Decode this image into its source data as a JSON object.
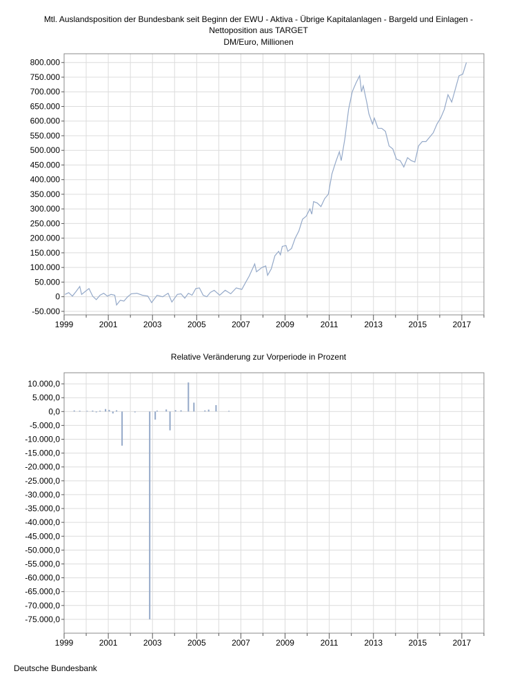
{
  "chart_data": [
    {
      "type": "line",
      "title": "Mtl. Auslandsposition der Bundesbank seit Beginn der EWU - Aktiva - Übrige Kapitalanlagen - Bargeld und Einlagen -",
      "title_line2": "Nettoposition aus TARGET",
      "subtitle": "DM/Euro, Millionen",
      "x_range": [
        "1999-01",
        "2017-12"
      ],
      "ylim": [
        -62000,
        830000
      ],
      "yticks": [
        -50000,
        0,
        50000,
        100000,
        150000,
        200000,
        250000,
        300000,
        350000,
        400000,
        450000,
        500000,
        550000,
        600000,
        650000,
        700000,
        750000,
        800000
      ],
      "ytick_labels": [
        "-50.000",
        "0",
        "50.000",
        "100.000",
        "150.000",
        "200.000",
        "250.000",
        "300.000",
        "350.000",
        "400.000",
        "450.000",
        "500.000",
        "550.000",
        "600.000",
        "650.000",
        "700.000",
        "750.000",
        "800.000"
      ],
      "xtick_labels": [
        "1999",
        "2001",
        "2003",
        "2005",
        "2007",
        "2009",
        "2011",
        "2013",
        "2015",
        "2017"
      ],
      "grid": true,
      "line_color": "#93a8c8",
      "series": [
        {
          "points": [
            [
              "1999-01",
              8000
            ],
            [
              "1999-03",
              14000
            ],
            [
              "1999-05",
              2000
            ],
            [
              "1999-07",
              18000
            ],
            [
              "1999-09",
              35000
            ],
            [
              "1999-10",
              8000
            ],
            [
              "1999-12",
              18000
            ],
            [
              "2000-02",
              28000
            ],
            [
              "2000-04",
              2000
            ],
            [
              "2000-06",
              -10000
            ],
            [
              "2000-08",
              5000
            ],
            [
              "2000-10",
              12000
            ],
            [
              "2000-12",
              2000
            ],
            [
              "2001-02",
              8000
            ],
            [
              "2001-04",
              5000
            ],
            [
              "2001-05",
              -28000
            ],
            [
              "2001-07",
              -12000
            ],
            [
              "2001-09",
              -15000
            ],
            [
              "2001-11",
              0
            ],
            [
              "2002-01",
              10000
            ],
            [
              "2002-04",
              12000
            ],
            [
              "2002-07",
              5000
            ],
            [
              "2002-10",
              2000
            ],
            [
              "2002-12",
              -20000
            ],
            [
              "2003-03",
              5000
            ],
            [
              "2003-06",
              0
            ],
            [
              "2003-09",
              12000
            ],
            [
              "2003-11",
              -18000
            ],
            [
              "2004-02",
              8000
            ],
            [
              "2004-04",
              10000
            ],
            [
              "2004-06",
              -5000
            ],
            [
              "2004-08",
              12000
            ],
            [
              "2004-10",
              5000
            ],
            [
              "2004-12",
              28000
            ],
            [
              "2005-02",
              30000
            ],
            [
              "2005-04",
              5000
            ],
            [
              "2005-06",
              0
            ],
            [
              "2005-08",
              15000
            ],
            [
              "2005-10",
              22000
            ],
            [
              "2006-01",
              5000
            ],
            [
              "2006-04",
              22000
            ],
            [
              "2006-07",
              10000
            ],
            [
              "2006-10",
              30000
            ],
            [
              "2007-01",
              25000
            ],
            [
              "2007-03",
              48000
            ],
            [
              "2007-05",
              70000
            ],
            [
              "2007-08",
              112000
            ],
            [
              "2007-09",
              85000
            ],
            [
              "2007-12",
              100000
            ],
            [
              "2008-02",
              105000
            ],
            [
              "2008-03",
              73000
            ],
            [
              "2008-05",
              95000
            ],
            [
              "2008-07",
              140000
            ],
            [
              "2008-09",
              155000
            ],
            [
              "2008-10",
              143000
            ],
            [
              "2008-11",
              172000
            ],
            [
              "2009-01",
              175000
            ],
            [
              "2009-02",
              155000
            ],
            [
              "2009-04",
              165000
            ],
            [
              "2009-06",
              200000
            ],
            [
              "2009-08",
              225000
            ],
            [
              "2009-10",
              265000
            ],
            [
              "2009-12",
              275000
            ],
            [
              "2010-02",
              300000
            ],
            [
              "2010-03",
              282000
            ],
            [
              "2010-04",
              325000
            ],
            [
              "2010-06",
              320000
            ],
            [
              "2010-08",
              308000
            ],
            [
              "2010-10",
              335000
            ],
            [
              "2010-12",
              350000
            ],
            [
              "2011-02",
              420000
            ],
            [
              "2011-04",
              460000
            ],
            [
              "2011-06",
              495000
            ],
            [
              "2011-07",
              465000
            ],
            [
              "2011-09",
              540000
            ],
            [
              "2011-11",
              640000
            ],
            [
              "2012-01",
              700000
            ],
            [
              "2012-03",
              730000
            ],
            [
              "2012-05",
              755000
            ],
            [
              "2012-06",
              700000
            ],
            [
              "2012-07",
              720000
            ],
            [
              "2012-09",
              660000
            ],
            [
              "2012-10",
              625000
            ],
            [
              "2012-12",
              590000
            ],
            [
              "2013-01",
              610000
            ],
            [
              "2013-03",
              575000
            ],
            [
              "2013-05",
              575000
            ],
            [
              "2013-07",
              565000
            ],
            [
              "2013-09",
              515000
            ],
            [
              "2013-11",
              505000
            ],
            [
              "2014-01",
              470000
            ],
            [
              "2014-03",
              465000
            ],
            [
              "2014-05",
              443000
            ],
            [
              "2014-07",
              475000
            ],
            [
              "2014-09",
              465000
            ],
            [
              "2014-11",
              460000
            ],
            [
              "2015-01",
              515000
            ],
            [
              "2015-03",
              530000
            ],
            [
              "2015-05",
              530000
            ],
            [
              "2015-07",
              545000
            ],
            [
              "2015-09",
              560000
            ],
            [
              "2015-11",
              590000
            ],
            [
              "2016-01",
              610000
            ],
            [
              "2016-03",
              640000
            ],
            [
              "2016-05",
              690000
            ],
            [
              "2016-07",
              665000
            ],
            [
              "2016-09",
              710000
            ],
            [
              "2016-11",
              755000
            ],
            [
              "2017-01",
              760000
            ],
            [
              "2017-03",
              800000
            ]
          ]
        }
      ]
    },
    {
      "type": "bar",
      "title": "Relative Veränderung zur Vorperiode in Prozent",
      "x_range": [
        "1999-01",
        "2017-12"
      ],
      "ylim": [
        -80000,
        14000
      ],
      "yticks": [
        10000,
        5000,
        0,
        -5000,
        -10000,
        -15000,
        -20000,
        -25000,
        -30000,
        -35000,
        -40000,
        -45000,
        -50000,
        -55000,
        -60000,
        -65000,
        -70000,
        -75000
      ],
      "ytick_labels": [
        "10.000,0",
        "5.000,0",
        "0,0",
        "-5.000,0",
        "-10.000,0",
        "-15.000,0",
        "-20.000,0",
        "-25.000,0",
        "-30.000,0",
        "-35.000,0",
        "-40.000,0",
        "-45.000,0",
        "-50.000,0",
        "-55.000,0",
        "-60.000,0",
        "-65.000,0",
        "-70.000,0",
        "-75.000,0"
      ],
      "xtick_labels": [
        "1999",
        "2001",
        "2003",
        "2005",
        "2007",
        "2009",
        "2011",
        "2013",
        "2015",
        "2017"
      ],
      "grid": true,
      "bar_color": "#93a8c8",
      "bars": [
        [
          "1999-06",
          400
        ],
        [
          "1999-09",
          300
        ],
        [
          "2000-01",
          250
        ],
        [
          "2000-04",
          350
        ],
        [
          "2000-06",
          -300
        ],
        [
          "2000-08",
          300
        ],
        [
          "2000-11",
          900
        ],
        [
          "2001-01",
          600
        ],
        [
          "2001-03",
          -700
        ],
        [
          "2001-05",
          450
        ],
        [
          "2001-08",
          -12300
        ],
        [
          "2002-03",
          -300
        ],
        [
          "2002-11",
          -75000
        ],
        [
          "2003-02",
          -2900
        ],
        [
          "2003-03",
          350
        ],
        [
          "2003-08",
          750
        ],
        [
          "2003-10",
          -6800
        ],
        [
          "2004-01",
          500
        ],
        [
          "2004-04",
          450
        ],
        [
          "2004-08",
          10500
        ],
        [
          "2004-11",
          3200
        ],
        [
          "2005-05",
          400
        ],
        [
          "2005-07",
          700
        ],
        [
          "2005-11",
          2300
        ],
        [
          "2006-06",
          250
        ]
      ]
    }
  ],
  "footer": "Deutsche Bundesbank"
}
